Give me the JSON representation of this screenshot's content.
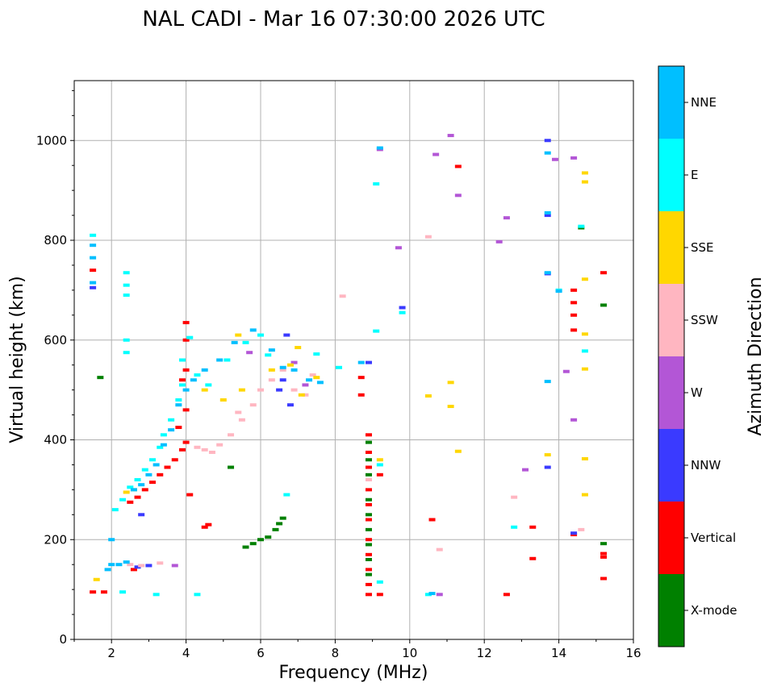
{
  "chart_data": {
    "type": "scatter",
    "title": "NAL CADI - Mar 16 07:30:00 2026 UTC",
    "xlabel": "Frequency (MHz)",
    "ylabel": "Virtual height (km)",
    "xlim": [
      1,
      16
    ],
    "ylim": [
      0,
      1120
    ],
    "xticks": [
      2,
      4,
      6,
      8,
      10,
      12,
      14,
      16
    ],
    "yticks": [
      0,
      200,
      400,
      600,
      800,
      1000
    ],
    "grid": true,
    "colorbar": {
      "title": "Azimuth Direction",
      "categories": [
        {
          "name": "X-mode",
          "color": "#008000"
        },
        {
          "name": "Vertical",
          "color": "#ff0000"
        },
        {
          "name": "NNW",
          "color": "#3a3aff"
        },
        {
          "name": "W",
          "color": "#b356d6"
        },
        {
          "name": "SSW",
          "color": "#ffb6c1"
        },
        {
          "name": "SSE",
          "color": "#ffd700"
        },
        {
          "name": "E",
          "color": "#00ffff"
        },
        {
          "name": "NNE",
          "color": "#00bfff"
        }
      ]
    },
    "series": [
      {
        "name": "X-mode",
        "points": [
          [
            1.7,
            525
          ],
          [
            5.6,
            185
          ],
          [
            5.8,
            192
          ],
          [
            6.0,
            200
          ],
          [
            6.2,
            205
          ],
          [
            6.4,
            220
          ],
          [
            6.5,
            232
          ],
          [
            6.6,
            243
          ],
          [
            8.9,
            395
          ],
          [
            8.9,
            360
          ],
          [
            8.9,
            330
          ],
          [
            8.9,
            280
          ],
          [
            8.9,
            250
          ],
          [
            8.9,
            220
          ],
          [
            8.9,
            190
          ],
          [
            8.9,
            160
          ],
          [
            8.9,
            130
          ],
          [
            15.2,
            670
          ],
          [
            15.2,
            192
          ],
          [
            14.6,
            825
          ],
          [
            5.2,
            345
          ]
        ]
      },
      {
        "name": "Vertical",
        "points": [
          [
            1.5,
            95
          ],
          [
            1.8,
            95
          ],
          [
            2.6,
            140
          ],
          [
            2.5,
            275
          ],
          [
            2.7,
            285
          ],
          [
            2.9,
            300
          ],
          [
            3.1,
            315
          ],
          [
            3.3,
            330
          ],
          [
            3.5,
            345
          ],
          [
            3.7,
            360
          ],
          [
            3.9,
            380
          ],
          [
            4.0,
            395
          ],
          [
            3.8,
            425
          ],
          [
            4.0,
            460
          ],
          [
            3.9,
            520
          ],
          [
            4.0,
            540
          ],
          [
            4.0,
            600
          ],
          [
            4.0,
            635
          ],
          [
            4.1,
            290
          ],
          [
            4.6,
            230
          ],
          [
            4.5,
            225
          ],
          [
            8.9,
            410
          ],
          [
            8.9,
            375
          ],
          [
            8.9,
            345
          ],
          [
            8.9,
            300
          ],
          [
            8.9,
            270
          ],
          [
            8.9,
            240
          ],
          [
            8.9,
            200
          ],
          [
            8.9,
            170
          ],
          [
            8.9,
            140
          ],
          [
            8.9,
            110
          ],
          [
            8.9,
            90
          ],
          [
            8.7,
            525
          ],
          [
            8.7,
            490
          ],
          [
            9.2,
            330
          ],
          [
            9.2,
            90
          ],
          [
            10.6,
            240
          ],
          [
            11.3,
            948
          ],
          [
            12.6,
            90
          ],
          [
            13.3,
            225
          ],
          [
            13.3,
            162
          ],
          [
            14.4,
            700
          ],
          [
            14.4,
            675
          ],
          [
            14.4,
            650
          ],
          [
            14.4,
            620
          ],
          [
            14.4,
            210
          ],
          [
            15.2,
            735
          ],
          [
            15.2,
            172
          ],
          [
            15.2,
            165
          ],
          [
            15.2,
            122
          ],
          [
            1.5,
            740
          ]
        ]
      },
      {
        "name": "NNW",
        "points": [
          [
            1.5,
            705
          ],
          [
            2.7,
            145
          ],
          [
            3.0,
            148
          ],
          [
            2.8,
            250
          ],
          [
            6.7,
            610
          ],
          [
            9.8,
            665
          ],
          [
            13.7,
            1000
          ],
          [
            13.7,
            733
          ],
          [
            13.7,
            850
          ],
          [
            13.7,
            345
          ],
          [
            14.4,
            213
          ],
          [
            8.9,
            555
          ],
          [
            6.8,
            470
          ],
          [
            6.5,
            500
          ],
          [
            6.6,
            520
          ]
        ]
      },
      {
        "name": "W",
        "points": [
          [
            9.2,
            982
          ],
          [
            10.7,
            972
          ],
          [
            11.1,
            1010
          ],
          [
            11.3,
            890
          ],
          [
            12.6,
            845
          ],
          [
            12.4,
            797
          ],
          [
            9.7,
            785
          ],
          [
            13.1,
            340
          ],
          [
            14.2,
            537
          ],
          [
            14.4,
            440
          ],
          [
            14.4,
            965
          ],
          [
            13.9,
            962
          ],
          [
            10.8,
            90
          ],
          [
            3.7,
            148
          ],
          [
            5.7,
            575
          ],
          [
            6.9,
            555
          ],
          [
            7.2,
            510
          ]
        ]
      },
      {
        "name": "SSW",
        "points": [
          [
            2.5,
            150
          ],
          [
            2.8,
            148
          ],
          [
            4.3,
            385
          ],
          [
            4.5,
            380
          ],
          [
            4.7,
            375
          ],
          [
            4.9,
            390
          ],
          [
            5.2,
            410
          ],
          [
            5.5,
            440
          ],
          [
            5.8,
            470
          ],
          [
            6.0,
            500
          ],
          [
            6.3,
            520
          ],
          [
            6.6,
            540
          ],
          [
            6.9,
            500
          ],
          [
            7.2,
            490
          ],
          [
            7.4,
            530
          ],
          [
            5.4,
            455
          ],
          [
            8.9,
            320
          ],
          [
            10.5,
            807
          ],
          [
            10.8,
            180
          ],
          [
            12.8,
            285
          ],
          [
            14.6,
            220
          ],
          [
            3.3,
            153
          ],
          [
            8.2,
            688
          ]
        ]
      },
      {
        "name": "SSE",
        "points": [
          [
            1.6,
            120
          ],
          [
            2.4,
            295
          ],
          [
            2.6,
            300
          ],
          [
            4.5,
            500
          ],
          [
            5.0,
            480
          ],
          [
            5.5,
            500
          ],
          [
            6.3,
            540
          ],
          [
            6.8,
            550
          ],
          [
            7.1,
            490
          ],
          [
            7.5,
            525
          ],
          [
            5.4,
            610
          ],
          [
            10.5,
            488
          ],
          [
            11.1,
            515
          ],
          [
            11.1,
            467
          ],
          [
            11.3,
            377
          ],
          [
            13.7,
            370
          ],
          [
            14.7,
            935
          ],
          [
            14.7,
            917
          ],
          [
            14.7,
            722
          ],
          [
            14.7,
            612
          ],
          [
            14.7,
            542
          ],
          [
            14.7,
            362
          ],
          [
            14.7,
            290
          ],
          [
            9.2,
            360
          ],
          [
            7.0,
            585
          ]
        ]
      },
      {
        "name": "E",
        "points": [
          [
            2.4,
            735
          ],
          [
            2.4,
            710
          ],
          [
            2.4,
            690
          ],
          [
            2.4,
            600
          ],
          [
            2.4,
            575
          ],
          [
            2.1,
            260
          ],
          [
            2.3,
            280
          ],
          [
            2.5,
            305
          ],
          [
            2.7,
            320
          ],
          [
            2.9,
            340
          ],
          [
            3.1,
            360
          ],
          [
            3.3,
            385
          ],
          [
            3.4,
            410
          ],
          [
            3.6,
            440
          ],
          [
            3.8,
            480
          ],
          [
            3.9,
            510
          ],
          [
            3.9,
            560
          ],
          [
            4.1,
            605
          ],
          [
            4.3,
            530
          ],
          [
            4.6,
            510
          ],
          [
            5.1,
            560
          ],
          [
            5.6,
            595
          ],
          [
            6.0,
            610
          ],
          [
            6.2,
            570
          ],
          [
            7.5,
            572
          ],
          [
            6.7,
            290
          ],
          [
            8.1,
            545
          ],
          [
            9.1,
            913
          ],
          [
            9.1,
            618
          ],
          [
            9.8,
            655
          ],
          [
            9.2,
            350
          ],
          [
            9.2,
            115
          ],
          [
            10.5,
            90
          ],
          [
            12.8,
            225
          ],
          [
            14.0,
            700
          ],
          [
            14.7,
            578
          ],
          [
            14.6,
            828
          ],
          [
            4.3,
            90
          ],
          [
            3.2,
            90
          ],
          [
            1.5,
            810
          ],
          [
            2.3,
            95
          ]
        ]
      },
      {
        "name": "NNE",
        "points": [
          [
            1.5,
            790
          ],
          [
            1.5,
            765
          ],
          [
            1.5,
            715
          ],
          [
            2.0,
            200
          ],
          [
            2.0,
            150
          ],
          [
            1.9,
            140
          ],
          [
            2.4,
            155
          ],
          [
            2.2,
            150
          ],
          [
            2.6,
            300
          ],
          [
            2.8,
            310
          ],
          [
            3.0,
            330
          ],
          [
            3.2,
            350
          ],
          [
            3.4,
            390
          ],
          [
            3.6,
            420
          ],
          [
            3.8,
            470
          ],
          [
            4.0,
            500
          ],
          [
            4.2,
            520
          ],
          [
            4.5,
            540
          ],
          [
            4.9,
            560
          ],
          [
            5.3,
            595
          ],
          [
            5.8,
            620
          ],
          [
            6.3,
            580
          ],
          [
            6.6,
            545
          ],
          [
            6.9,
            540
          ],
          [
            7.3,
            520
          ],
          [
            7.6,
            515
          ],
          [
            8.7,
            555
          ],
          [
            9.2,
            985
          ],
          [
            10.6,
            92
          ],
          [
            13.7,
            975
          ],
          [
            13.7,
            855
          ],
          [
            13.7,
            517
          ],
          [
            13.7,
            735
          ],
          [
            14.0,
            698
          ]
        ]
      }
    ]
  }
}
